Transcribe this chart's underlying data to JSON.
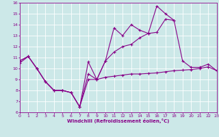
{
  "xlabel": "Windchill (Refroidissement éolien,°C)",
  "xlim": [
    0,
    23
  ],
  "ylim": [
    6,
    16
  ],
  "xticks": [
    0,
    1,
    2,
    3,
    4,
    5,
    6,
    7,
    8,
    9,
    10,
    11,
    12,
    13,
    14,
    15,
    16,
    17,
    18,
    19,
    20,
    21,
    22,
    23
  ],
  "yticks": [
    6,
    7,
    8,
    9,
    10,
    11,
    12,
    13,
    14,
    15,
    16
  ],
  "bg": "#cce8e8",
  "lc": "#880088",
  "line1": [
    10.7,
    11.1,
    10.0,
    8.8,
    8.0,
    8.0,
    7.8,
    6.5,
    10.6,
    9.0,
    10.7,
    13.7,
    13.0,
    14.0,
    13.5,
    13.2,
    15.7,
    15.0,
    14.4,
    null,
    null,
    null,
    null,
    null
  ],
  "line2": [
    10.7,
    11.1,
    10.0,
    8.8,
    8.0,
    8.0,
    7.8,
    6.5,
    9.5,
    9.0,
    10.7,
    11.5,
    12.0,
    12.2,
    12.8,
    13.2,
    13.3,
    14.5,
    14.4,
    10.7,
    10.1,
    10.1,
    10.4,
    9.8
  ],
  "line3": [
    10.5,
    11.1,
    10.0,
    8.8,
    8.0,
    8.0,
    7.8,
    6.5,
    9.0,
    9.0,
    9.2,
    9.3,
    9.4,
    9.5,
    9.5,
    9.55,
    9.6,
    9.7,
    9.8,
    9.85,
    9.9,
    10.0,
    10.15,
    9.8
  ]
}
